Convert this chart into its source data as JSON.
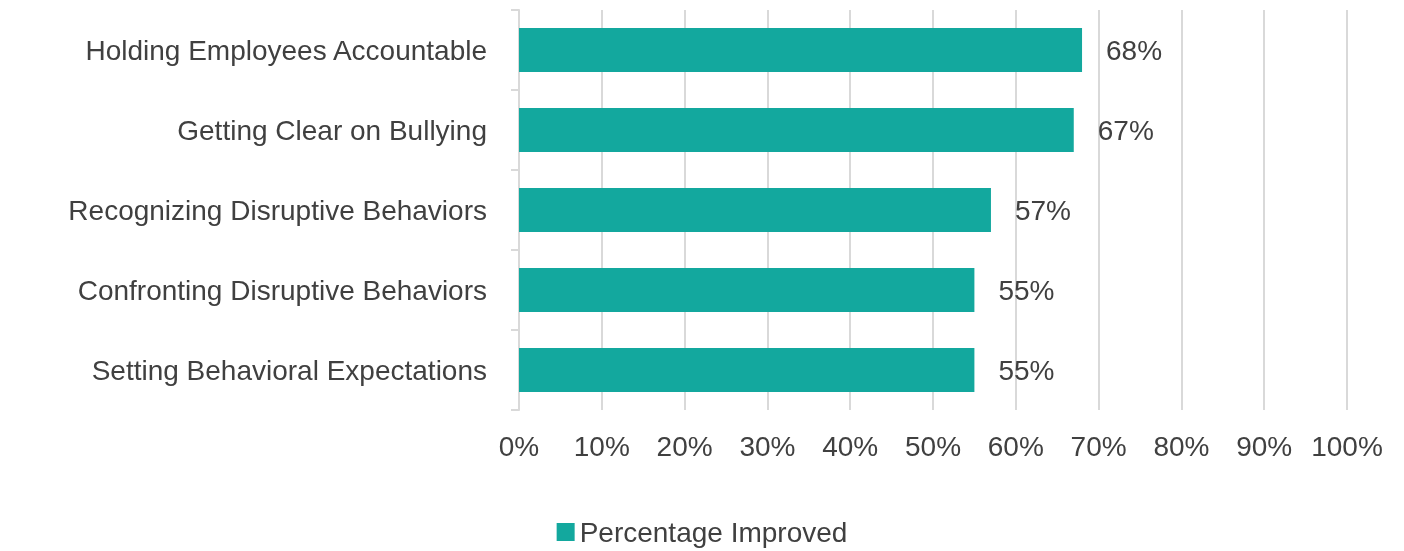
{
  "chart_data": {
    "type": "bar",
    "orientation": "horizontal",
    "categories": [
      "Holding Employees Accountable",
      "Getting Clear on Bullying",
      "Recognizing Disruptive Behaviors",
      "Confronting Disruptive Behaviors",
      "Setting Behavioral Expectations"
    ],
    "series": [
      {
        "name": "Percentage Improved",
        "color": "#13a89e",
        "values": [
          68,
          67,
          57,
          55,
          55
        ],
        "value_labels": [
          "68%",
          "67%",
          "57%",
          "55%",
          "55%"
        ]
      }
    ],
    "xlim": [
      0,
      100
    ],
    "xticks": [
      {
        "value": 0,
        "label": "0%"
      },
      {
        "value": 10,
        "label": "10%"
      },
      {
        "value": 20,
        "label": "20%"
      },
      {
        "value": 30,
        "label": "30%"
      },
      {
        "value": 40,
        "label": "40%"
      },
      {
        "value": 50,
        "label": "50%"
      },
      {
        "value": 60,
        "label": "60%"
      },
      {
        "value": 70,
        "label": "70%"
      },
      {
        "value": 80,
        "label": "80%"
      },
      {
        "value": 90,
        "label": "90%"
      },
      {
        "value": 100,
        "label": "100%"
      }
    ],
    "grid": "x",
    "legend": "bottom"
  }
}
